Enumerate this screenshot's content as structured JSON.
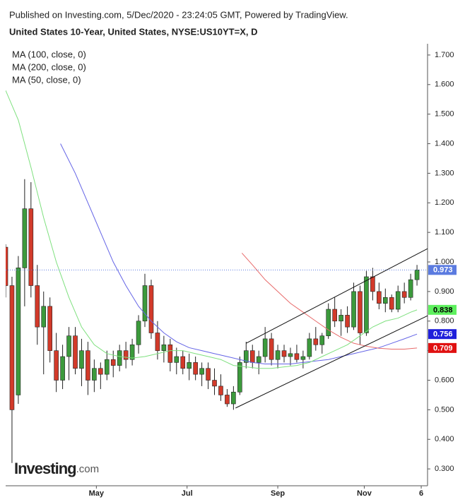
{
  "chart_data": {
    "type": "candlestick",
    "subtitle": "Published on Investing.com, 5/Dec/2020 - 23:24:05 GMT, Powered by TradingView.",
    "title": "United States 10-Year, United States, NYSE:US10YT=X, D",
    "logo": [
      "Investing",
      ".com"
    ],
    "up_color": "#3c9a3c",
    "down_color": "#d23a2a",
    "x": [
      0,
      3,
      6,
      9,
      12,
      15,
      18,
      21,
      24,
      27,
      30,
      33,
      36,
      39,
      42,
      45,
      48,
      51,
      54,
      57,
      60,
      63,
      66,
      69,
      72,
      75,
      78,
      81,
      84,
      87,
      90,
      93,
      96,
      99,
      102,
      105,
      108,
      111,
      114,
      117,
      120,
      123,
      126,
      129,
      132,
      135,
      138,
      141,
      144,
      147,
      150,
      153,
      156,
      159,
      162,
      165,
      168,
      171,
      174,
      177,
      180,
      183,
      186,
      189,
      192,
      195
    ],
    "open": [
      1.05,
      0.92,
      0.55,
      0.98,
      1.18,
      0.92,
      0.78,
      0.85,
      0.7,
      0.6,
      0.68,
      0.75,
      0.64,
      0.7,
      0.6,
      0.64,
      0.62,
      0.67,
      0.65,
      0.7,
      0.67,
      0.72,
      0.8,
      0.92,
      0.76,
      0.7,
      0.72,
      0.66,
      0.68,
      0.64,
      0.66,
      0.62,
      0.64,
      0.6,
      0.58,
      0.55,
      0.52,
      0.56,
      0.66,
      0.7,
      0.66,
      0.68,
      0.74,
      0.67,
      0.7,
      0.68,
      0.69,
      0.67,
      0.68,
      0.74,
      0.72,
      0.75,
      0.84,
      0.8,
      0.82,
      0.78,
      0.9,
      0.76,
      0.95,
      0.9,
      0.86,
      0.88,
      0.84,
      0.9,
      0.88,
      0.94
    ],
    "high": [
      1.06,
      0.95,
      1.02,
      1.28,
      1.27,
      0.99,
      0.9,
      0.88,
      0.76,
      0.72,
      0.78,
      0.78,
      0.74,
      0.73,
      0.67,
      0.66,
      0.7,
      0.7,
      0.72,
      0.73,
      0.74,
      0.82,
      0.96,
      0.94,
      0.8,
      0.75,
      0.74,
      0.71,
      0.7,
      0.69,
      0.68,
      0.66,
      0.66,
      0.64,
      0.62,
      0.57,
      0.58,
      0.68,
      0.73,
      0.72,
      0.7,
      0.78,
      0.76,
      0.72,
      0.72,
      0.71,
      0.72,
      0.7,
      0.76,
      0.78,
      0.76,
      0.86,
      0.88,
      0.84,
      0.85,
      0.93,
      0.92,
      0.97,
      0.98,
      0.93,
      0.91,
      0.89,
      0.92,
      0.93,
      0.96,
      0.99
    ],
    "low": [
      0.88,
      0.32,
      0.52,
      0.85,
      0.88,
      0.72,
      0.62,
      0.66,
      0.56,
      0.57,
      0.6,
      0.62,
      0.58,
      0.55,
      0.56,
      0.57,
      0.6,
      0.61,
      0.63,
      0.64,
      0.65,
      0.69,
      0.78,
      0.74,
      0.67,
      0.66,
      0.63,
      0.62,
      0.62,
      0.6,
      0.6,
      0.58,
      0.57,
      0.55,
      0.53,
      0.51,
      0.5,
      0.55,
      0.64,
      0.64,
      0.62,
      0.66,
      0.65,
      0.64,
      0.66,
      0.65,
      0.66,
      0.64,
      0.67,
      0.7,
      0.69,
      0.74,
      0.78,
      0.75,
      0.76,
      0.77,
      0.72,
      0.75,
      0.87,
      0.84,
      0.83,
      0.83,
      0.83,
      0.86,
      0.87,
      0.92
    ],
    "close": [
      0.92,
      0.5,
      0.98,
      1.18,
      0.92,
      0.78,
      0.85,
      0.7,
      0.6,
      0.68,
      0.75,
      0.64,
      0.7,
      0.6,
      0.64,
      0.62,
      0.67,
      0.65,
      0.7,
      0.67,
      0.72,
      0.8,
      0.92,
      0.76,
      0.7,
      0.72,
      0.66,
      0.68,
      0.64,
      0.66,
      0.62,
      0.64,
      0.6,
      0.58,
      0.55,
      0.52,
      0.56,
      0.66,
      0.7,
      0.66,
      0.68,
      0.74,
      0.67,
      0.7,
      0.68,
      0.69,
      0.67,
      0.68,
      0.74,
      0.72,
      0.75,
      0.84,
      0.8,
      0.82,
      0.78,
      0.9,
      0.76,
      0.95,
      0.9,
      0.86,
      0.88,
      0.84,
      0.9,
      0.88,
      0.94,
      0.973
    ],
    "last_color": "#5b7be0",
    "series": [
      {
        "name": "MA (100, close, 0)",
        "color": "#6464e6",
        "badge_color": "#1f1fdb",
        "badge_text": "#ffffff",
        "x": [
          26,
          33,
          39,
          45,
          51,
          57,
          63,
          69,
          75,
          81,
          87,
          93,
          99,
          105,
          111,
          117,
          123,
          129,
          135,
          141,
          147,
          153,
          159,
          165,
          171,
          177,
          183,
          189,
          195
        ],
        "values": [
          1.4,
          1.3,
          1.2,
          1.1,
          1.0,
          0.92,
          0.85,
          0.8,
          0.76,
          0.73,
          0.71,
          0.7,
          0.69,
          0.68,
          0.67,
          0.66,
          0.655,
          0.655,
          0.655,
          0.66,
          0.665,
          0.67,
          0.68,
          0.69,
          0.7,
          0.71,
          0.725,
          0.74,
          0.756
        ]
      },
      {
        "name": "MA (200, close, 0)",
        "color": "#e86a6a",
        "badge_color": "#e01010",
        "badge_text": "#ffffff",
        "x": [
          112,
          117,
          123,
          129,
          135,
          141,
          147,
          153,
          159,
          165,
          171,
          177,
          183,
          189,
          195
        ],
        "values": [
          1.03,
          0.99,
          0.94,
          0.9,
          0.86,
          0.83,
          0.8,
          0.77,
          0.745,
          0.725,
          0.715,
          0.708,
          0.705,
          0.705,
          0.709
        ]
      },
      {
        "name": "MA (50, close, 0)",
        "color": "#7ee07e",
        "badge_color": "#5ef05e",
        "badge_text": "#000000",
        "x": [
          0,
          6,
          12,
          18,
          24,
          30,
          36,
          42,
          48,
          54,
          60,
          66,
          72,
          78,
          84,
          90,
          96,
          102,
          108,
          114,
          120,
          126,
          132,
          138,
          144,
          150,
          156,
          162,
          168,
          174,
          180,
          186,
          192,
          195
        ],
        "values": [
          1.58,
          1.48,
          1.32,
          1.15,
          1.0,
          0.88,
          0.78,
          0.72,
          0.69,
          0.68,
          0.675,
          0.68,
          0.69,
          0.7,
          0.7,
          0.69,
          0.68,
          0.67,
          0.65,
          0.645,
          0.64,
          0.64,
          0.645,
          0.65,
          0.66,
          0.68,
          0.7,
          0.72,
          0.75,
          0.78,
          0.8,
          0.81,
          0.83,
          0.838
        ]
      }
    ],
    "trendlines": [
      {
        "x": [
          109,
          200
        ],
        "values": [
          0.506,
          0.818
        ]
      },
      {
        "x": [
          114,
          200
        ],
        "values": [
          0.725,
          1.045
        ]
      }
    ],
    "xlim": [
      0,
      200
    ],
    "xticks": [
      {
        "value": 43,
        "label": "May"
      },
      {
        "value": 86,
        "label": "Jul"
      },
      {
        "value": 129,
        "label": "Sep"
      },
      {
        "value": 170,
        "label": "Nov"
      },
      {
        "value": 197,
        "label": "6"
      }
    ],
    "ylim": [
      0.243,
      1.738
    ],
    "yticks": [
      {
        "value": 0.3,
        "label": "0.300"
      },
      {
        "value": 0.4,
        "label": "0.400"
      },
      {
        "value": 0.5,
        "label": "0.500"
      },
      {
        "value": 0.6,
        "label": "0.600"
      },
      {
        "value": 0.7,
        "label": "0.700"
      },
      {
        "value": 0.8,
        "label": "0.800"
      },
      {
        "value": 0.9,
        "label": "0.900"
      },
      {
        "value": 1.0,
        "label": "1.000"
      },
      {
        "value": 1.1,
        "label": "1.100"
      },
      {
        "value": 1.2,
        "label": "1.200"
      },
      {
        "value": 1.3,
        "label": "1.300"
      },
      {
        "value": 1.4,
        "label": "1.400"
      },
      {
        "value": 1.5,
        "label": "1.500"
      },
      {
        "value": 1.6,
        "label": "1.600"
      },
      {
        "value": 1.7,
        "label": "1.700"
      }
    ]
  }
}
